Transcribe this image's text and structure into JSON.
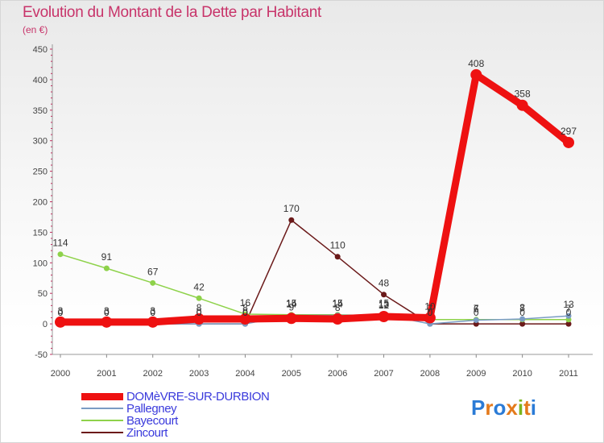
{
  "title": "Evolution du Montant de la Dette par Habitant",
  "unit_label": "(en €)",
  "logo": {
    "text": "Proxiti",
    "letter_colors": [
      "#2b7bd6",
      "#e47a1b",
      "#2b7bd6",
      "#e47a1b",
      "#7ab51d",
      "#e47a1b",
      "#2b7bd6"
    ]
  },
  "chart_data": {
    "type": "line",
    "title": "Evolution du Montant de la Dette par Habitant",
    "ylabel": "(en €)",
    "xlabel": "",
    "x": [
      "2000",
      "2001",
      "2002",
      "2003",
      "2004",
      "2005",
      "2006",
      "2007",
      "2008",
      "2009",
      "2010",
      "2011"
    ],
    "ylim": [
      -50,
      450
    ],
    "yticks": [
      "-50",
      "0",
      "50",
      "100",
      "150",
      "200",
      "250",
      "300",
      "350",
      "400",
      "450"
    ],
    "grid": false,
    "legend_position": "bottom-left",
    "series": [
      {
        "name": "DOMèVRE-SUR-DURBION",
        "color": "#ee1111",
        "values": [
          3,
          3,
          3,
          8,
          8,
          9,
          8,
          12,
          10,
          408,
          358,
          297
        ],
        "labels": [
          "3",
          "3",
          "3",
          "8",
          "8",
          "9",
          "8",
          "12",
          "10",
          "408",
          "358",
          "297"
        ]
      },
      {
        "name": "Pallegney",
        "color": "#7a9cc4",
        "values": [
          0,
          0,
          0,
          0,
          0,
          14,
          14,
          15,
          0,
          6,
          8,
          13
        ],
        "labels": [
          "0",
          "0",
          "0",
          "0",
          "0",
          "14",
          "14",
          "15",
          "0",
          "6",
          "8",
          "13"
        ]
      },
      {
        "name": "Bayecourt",
        "color": "#8ed24a",
        "values": [
          114,
          91,
          67,
          42,
          16,
          15,
          15,
          13,
          7,
          7,
          7,
          7
        ],
        "labels": [
          "114",
          "91",
          "67",
          "42",
          "16",
          "15",
          "15",
          "13",
          "7",
          "7",
          "7",
          "7"
        ]
      },
      {
        "name": "Zincourt",
        "color": "#6b1a1a",
        "values": [
          0,
          0,
          0,
          0,
          0,
          170,
          110,
          48,
          0,
          0,
          0,
          0
        ],
        "labels": [
          "0",
          "0",
          "0",
          "0",
          "0",
          "170",
          "110",
          "48",
          "0",
          "0",
          "0",
          "0"
        ]
      }
    ]
  }
}
